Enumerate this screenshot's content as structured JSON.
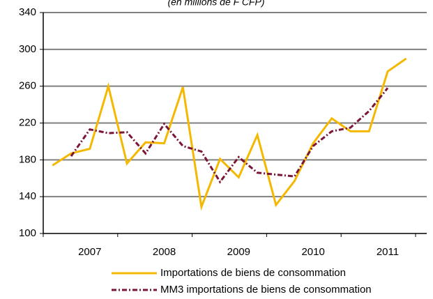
{
  "chart_data": {
    "type": "line",
    "subtitle": "(en millions de F CFP)",
    "categories": [
      null,
      null,
      "2007",
      null,
      null,
      null,
      "2008",
      null,
      null,
      null,
      "2009",
      null,
      null,
      null,
      "2010",
      null,
      null,
      null,
      "2011",
      null
    ],
    "series": [
      {
        "name": "Importations de biens de consommation",
        "color": "#f5b800",
        "style": "solid",
        "values": [
          174,
          187,
          192,
          260,
          176,
          199,
          198,
          259,
          129,
          181,
          161,
          207,
          131,
          157,
          198,
          225,
          211,
          211,
          276,
          290
        ]
      },
      {
        "name": "MM3 importations de biens de consommation",
        "color": "#7b1535",
        "style": "dashdot",
        "values": [
          null,
          184,
          213,
          209,
          210,
          187,
          219,
          195,
          189,
          156,
          183,
          166,
          164,
          162,
          195,
          211,
          215,
          233,
          258,
          null
        ]
      }
    ],
    "ylim": [
      100,
      340
    ],
    "yticks": [
      100,
      140,
      180,
      220,
      260,
      300,
      340
    ],
    "grid": true
  }
}
